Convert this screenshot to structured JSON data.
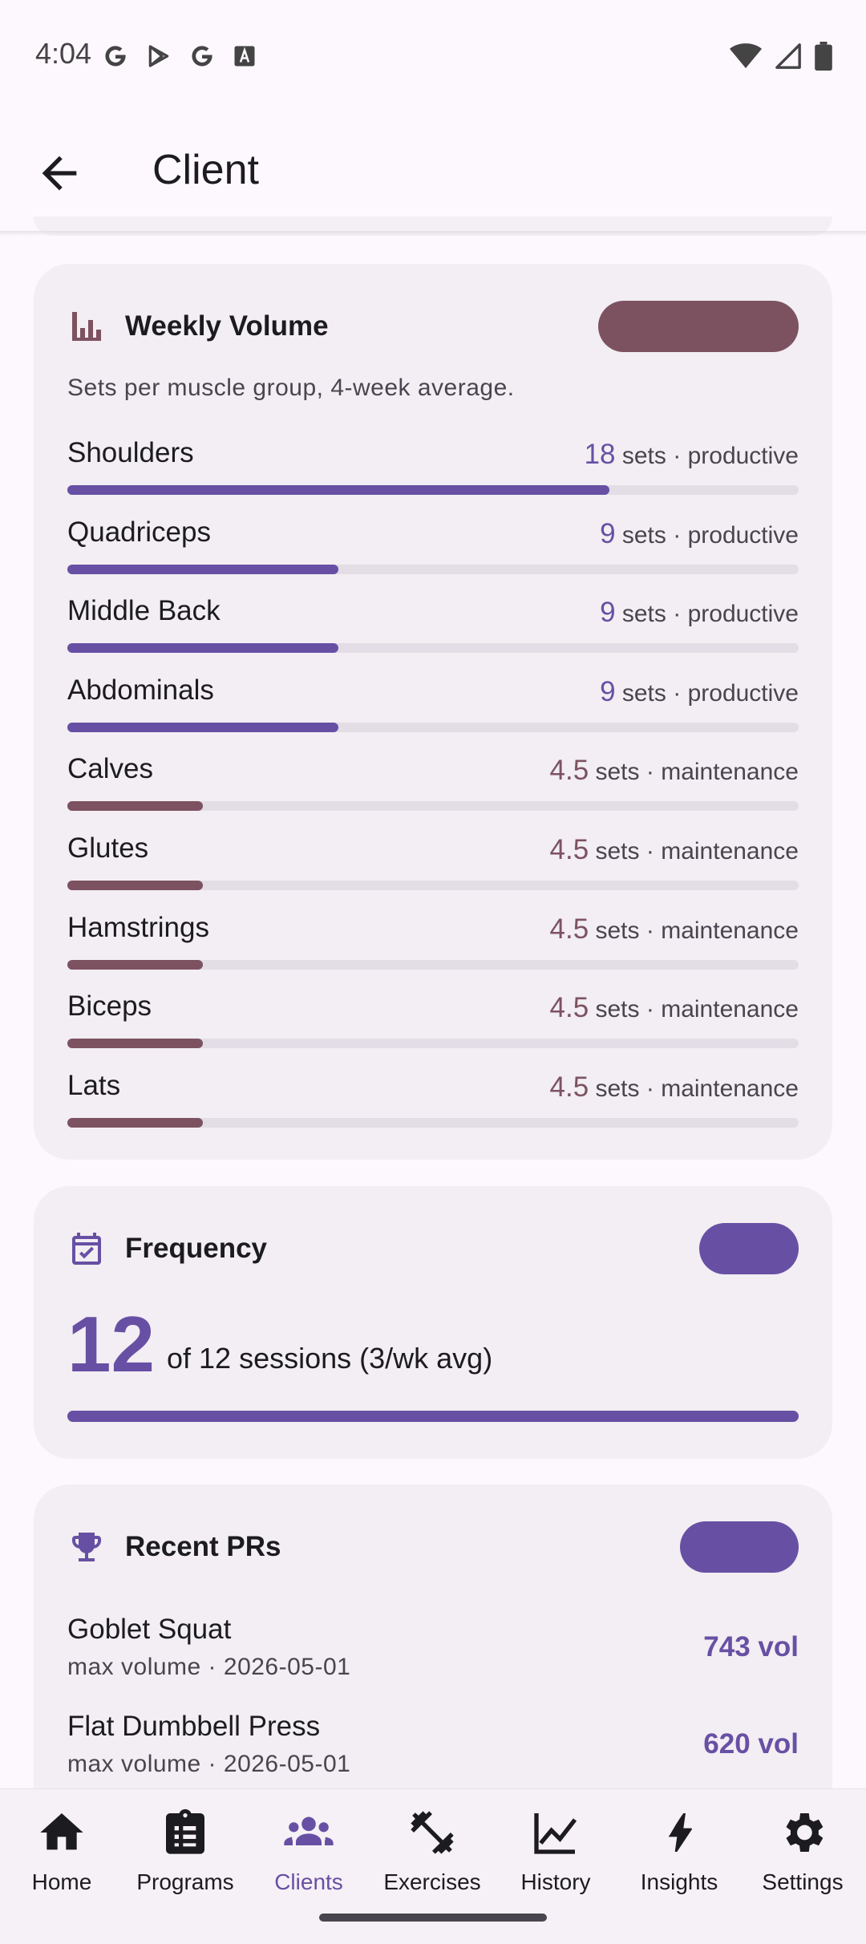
{
  "status_bar": {
    "time": "4:04",
    "left_icons": [
      "google-icon",
      "play-store-icon",
      "google-icon",
      "font-icon"
    ],
    "right_icons": [
      "wifi-icon",
      "signal-icon",
      "battery-icon"
    ]
  },
  "app_bar": {
    "title": "Client",
    "back_icon": "arrow-back-icon"
  },
  "colors": {
    "primary": "#6750a4",
    "maintenance": "#7d5260",
    "card_bg": "#f2eef3",
    "track": "#e3dde6"
  },
  "weekly_volume": {
    "title": "Weekly Volume",
    "subtitle": "Sets per muscle group, 4-week average.",
    "unit": "sets",
    "scale_max_sets": 24.3,
    "rows": [
      {
        "name": "Shoulders",
        "value": "18",
        "sets": 18,
        "status": "productive"
      },
      {
        "name": "Quadriceps",
        "value": "9",
        "sets": 9,
        "status": "productive"
      },
      {
        "name": "Middle Back",
        "value": "9",
        "sets": 9,
        "status": "productive"
      },
      {
        "name": "Abdominals",
        "value": "9",
        "sets": 9,
        "status": "productive"
      },
      {
        "name": "Calves",
        "value": "4.5",
        "sets": 4.5,
        "status": "maintenance"
      },
      {
        "name": "Glutes",
        "value": "4.5",
        "sets": 4.5,
        "status": "maintenance"
      },
      {
        "name": "Hamstrings",
        "value": "4.5",
        "sets": 4.5,
        "status": "maintenance"
      },
      {
        "name": "Biceps",
        "value": "4.5",
        "sets": 4.5,
        "status": "maintenance"
      },
      {
        "name": "Lats",
        "value": "4.5",
        "sets": 4.5,
        "status": "maintenance"
      }
    ]
  },
  "frequency": {
    "title": "Frequency",
    "count": "12",
    "detail": "of 12 sessions (3/wk avg)",
    "progress": 1.0
  },
  "recent_prs": {
    "title": "Recent PRs",
    "items": [
      {
        "exercise": "Goblet Squat",
        "meta": "max volume · 2026-05-01",
        "value": "743 vol"
      },
      {
        "exercise": "Flat Dumbbell Press",
        "meta": "max volume · 2026-05-01",
        "value": "620 vol"
      }
    ]
  },
  "bottom_nav": {
    "items": [
      {
        "label": "Home",
        "icon": "home-icon"
      },
      {
        "label": "Programs",
        "icon": "clipboard-icon"
      },
      {
        "label": "Clients",
        "icon": "people-icon",
        "active": true
      },
      {
        "label": "Exercises",
        "icon": "dumbbell-icon"
      },
      {
        "label": "History",
        "icon": "chart-line-icon"
      },
      {
        "label": "Insights",
        "icon": "bolt-icon"
      },
      {
        "label": "Settings",
        "icon": "gear-icon"
      }
    ]
  }
}
